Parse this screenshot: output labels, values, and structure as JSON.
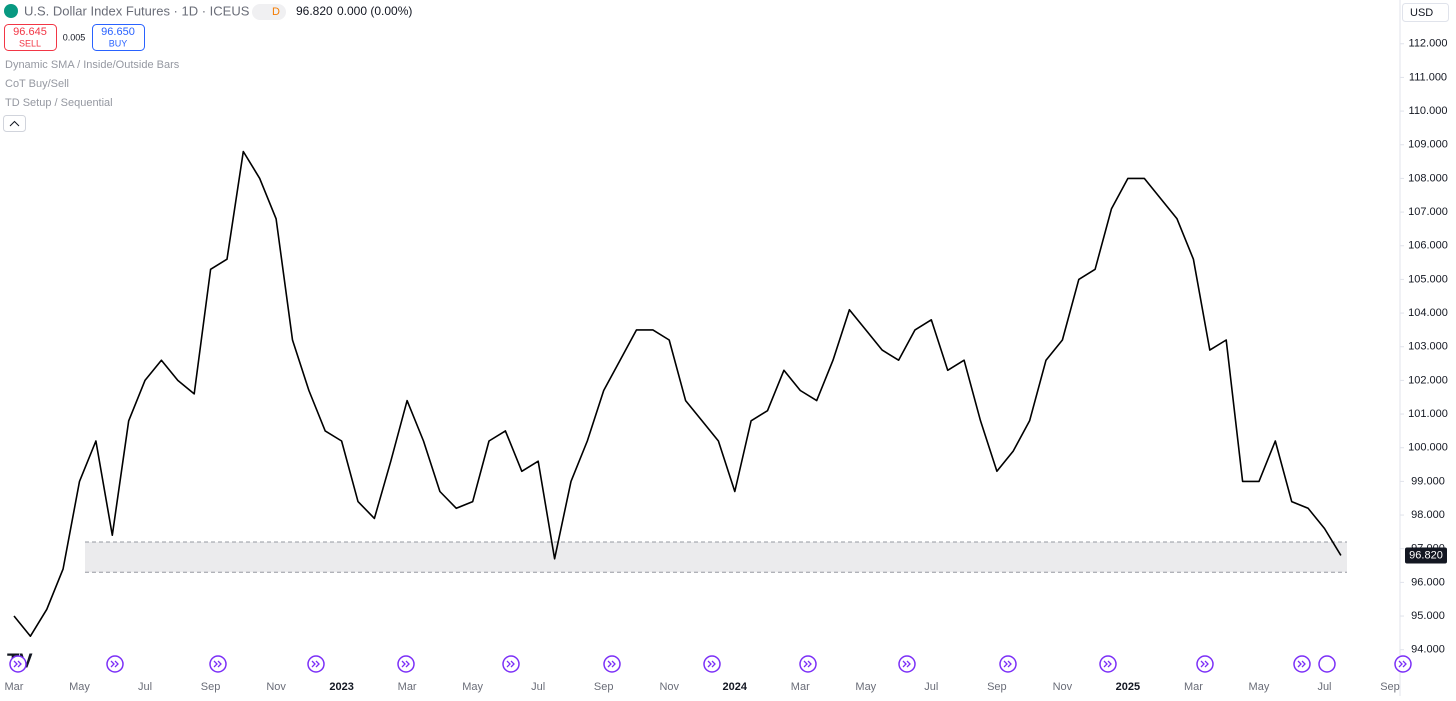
{
  "ui": {
    "symbol": "U.S. Dollar Index Futures · 1D · ICEUS",
    "delay": "D",
    "price": "96.820",
    "change": "0.000 (0.00%)",
    "sell_price": "96.645",
    "sell": "SELL",
    "spread": "0.005",
    "buy_price": "96.650",
    "buy": "BUY",
    "currency": "USD",
    "indicators": [
      "Dynamic SMA / Inside/Outside Bars",
      "CoT Buy/Sell",
      "TD Setup / Sequential"
    ]
  },
  "chart_data": {
    "type": "line",
    "color": "#000000",
    "categories": [
      "Mar",
      null,
      null,
      null,
      "May",
      null,
      null,
      null,
      "Jul",
      null,
      null,
      null,
      "Sep",
      null,
      null,
      null,
      "Nov",
      null,
      null,
      null,
      "2023",
      null,
      null,
      null,
      "Mar",
      null,
      null,
      null,
      "May",
      null,
      null,
      null,
      "Jul",
      null,
      null,
      null,
      "Sep",
      null,
      null,
      null,
      "Nov",
      null,
      null,
      null,
      "2024",
      null,
      null,
      null,
      "Mar",
      null,
      null,
      null,
      "May",
      null,
      null,
      null,
      "Jul",
      null,
      null,
      null,
      "Sep",
      null,
      null,
      null,
      "Nov",
      null,
      null,
      null,
      "2025",
      null,
      null,
      null,
      "Mar",
      null,
      null,
      null,
      "May",
      null,
      null,
      null,
      "Jul",
      null,
      null,
      null,
      "Sep",
      null,
      null,
      null
    ],
    "values": [
      95.0,
      94.4,
      95.2,
      96.4,
      99.0,
      100.2,
      97.4,
      100.8,
      102.0,
      102.6,
      102.0,
      101.6,
      105.3,
      105.6,
      108.8,
      108.0,
      106.8,
      103.2,
      101.7,
      100.5,
      100.2,
      98.4,
      97.9,
      99.6,
      101.4,
      100.2,
      98.7,
      98.2,
      98.4,
      100.2,
      100.5,
      99.3,
      99.6,
      96.7,
      99.0,
      100.2,
      101.7,
      102.6,
      103.5,
      103.5,
      103.2,
      101.4,
      100.8,
      100.2,
      98.7,
      100.8,
      101.1,
      102.3,
      101.7,
      101.4,
      102.6,
      104.1,
      103.5,
      102.9,
      102.6,
      103.5,
      103.8,
      102.3,
      102.6,
      100.8,
      99.3,
      99.9,
      100.8,
      102.6,
      103.2,
      105.0,
      105.3,
      107.1,
      108.0,
      108.0,
      107.4,
      106.8,
      105.6,
      102.9,
      103.2,
      99.0,
      99.0,
      100.2,
      98.4,
      98.2,
      97.6,
      96.8,
      null,
      null,
      null,
      null,
      null,
      null
    ],
    "shaded_range": [
      96.3,
      97.2
    ],
    "ylim": [
      93.1,
      113.3
    ],
    "yticks": [
      {
        "value": 94,
        "label": "94.000"
      },
      {
        "value": 95,
        "label": "95.000"
      },
      {
        "value": 96,
        "label": "96.000"
      },
      {
        "value": 97,
        "label": "97.000"
      },
      {
        "value": 98,
        "label": "98.000"
      },
      {
        "value": 99,
        "label": "99.000"
      },
      {
        "value": 100,
        "label": "100.000"
      },
      {
        "value": 101,
        "label": "101.000"
      },
      {
        "value": 102,
        "label": "102.000"
      },
      {
        "value": 103,
        "label": "103.000"
      },
      {
        "value": 104,
        "label": "104.000"
      },
      {
        "value": 105,
        "label": "105.000"
      },
      {
        "value": 106,
        "label": "106.000"
      },
      {
        "value": 107,
        "label": "107.000"
      },
      {
        "value": 108,
        "label": "108.000"
      },
      {
        "value": 109,
        "label": "109.000"
      },
      {
        "value": 110,
        "label": "110.000"
      },
      {
        "value": 111,
        "label": "111.000"
      },
      {
        "value": 112,
        "label": "112.000"
      }
    ],
    "grid": false
  }
}
